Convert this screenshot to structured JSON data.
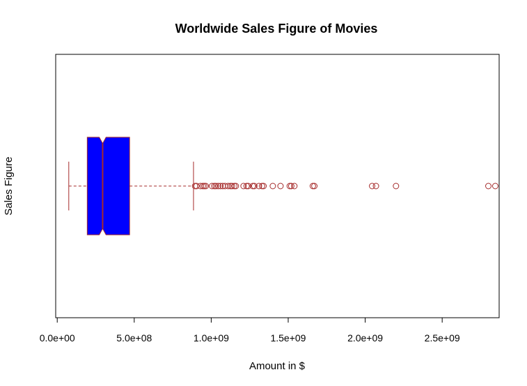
{
  "chart_data": {
    "type": "boxplot",
    "orientation": "horizontal",
    "notched": true,
    "title": "Worldwide Sales Figure of Movies",
    "xlabel": "Amount in $",
    "ylabel": "Sales Figure",
    "xlim": [
      -10000000,
      2870000000
    ],
    "ticks": [
      {
        "value": 0,
        "label": "0.0e+00"
      },
      {
        "value": 500000000,
        "label": "5.0e+08"
      },
      {
        "value": 1000000000,
        "label": "1.0e+09"
      },
      {
        "value": 1500000000,
        "label": "1.5e+09"
      },
      {
        "value": 2000000000,
        "label": "2.0e+09"
      },
      {
        "value": 2500000000,
        "label": "2.5e+09"
      }
    ],
    "box": {
      "whisker_low": 75000000,
      "q1": 195000000,
      "median": 295000000,
      "q3": 470000000,
      "whisker_high": 885000000,
      "notch_low": 273000000,
      "notch_high": 317000000
    },
    "outliers": [
      895000000,
      905000000,
      930000000,
      945000000,
      955000000,
      965000000,
      1005000000,
      1020000000,
      1030000000,
      1045000000,
      1060000000,
      1075000000,
      1090000000,
      1110000000,
      1125000000,
      1135000000,
      1150000000,
      1160000000,
      1210000000,
      1230000000,
      1240000000,
      1270000000,
      1280000000,
      1310000000,
      1330000000,
      1340000000,
      1400000000,
      1450000000,
      1510000000,
      1520000000,
      1540000000,
      1660000000,
      1670000000,
      2045000000,
      2070000000,
      2200000000,
      2800000000,
      2845000000
    ],
    "colors": {
      "box_fill": "#0000ff",
      "box_border": "#a52a2a",
      "whisker": "#a52a2a",
      "outlier": "#a52a2a"
    },
    "grid": false,
    "legend": "none"
  }
}
